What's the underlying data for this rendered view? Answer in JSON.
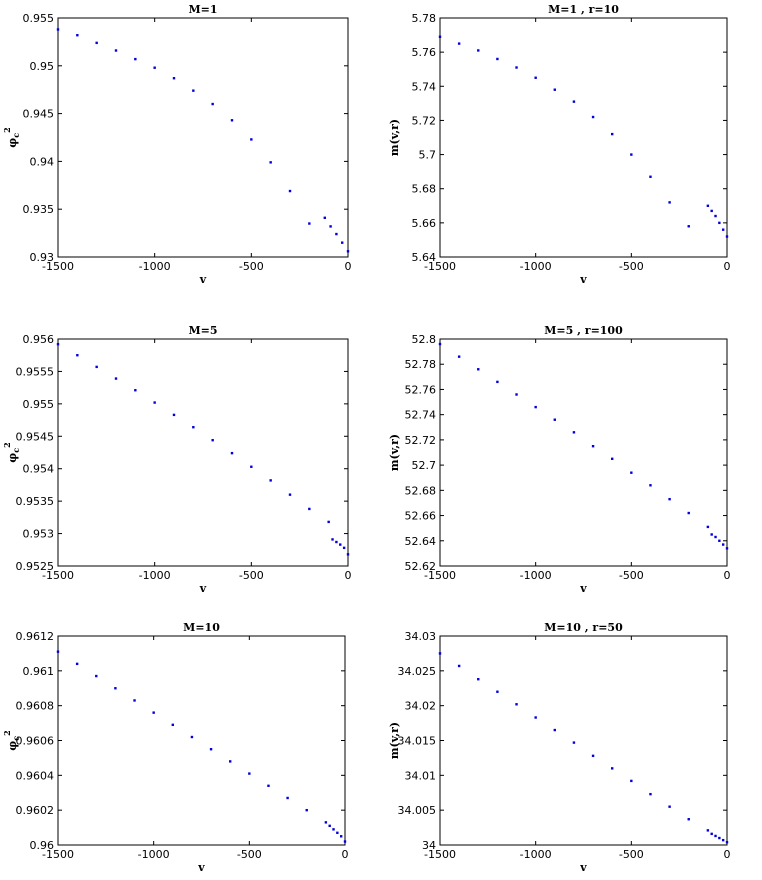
{
  "chart_data": [
    {
      "type": "scatter",
      "title": "M=1",
      "xlabel": "v",
      "ylabel": "φ_c^2",
      "xlim": [
        -1500,
        0
      ],
      "ylim": [
        0.93,
        0.955
      ],
      "xticks": [
        "-1500",
        "-1000",
        "-500",
        "0"
      ],
      "yticks": [
        "0.93",
        "0.935",
        "0.94",
        "0.945",
        "0.95",
        "0.955"
      ],
      "series": [
        {
          "x": [
            -1500,
            -1400,
            -1300,
            -1200,
            -1100,
            -1000,
            -900,
            -800,
            -700,
            -600,
            -500,
            -400,
            -300,
            -200,
            -120,
            -90,
            -60,
            -30,
            0
          ],
          "y": [
            0.9538,
            0.9532,
            0.9524,
            0.9516,
            0.9507,
            0.9498,
            0.9487,
            0.9474,
            0.946,
            0.9443,
            0.9423,
            0.9399,
            0.9369,
            0.9335,
            0.9341,
            0.9332,
            0.9324,
            0.9315,
            0.9306
          ]
        }
      ]
    },
    {
      "type": "scatter",
      "title": "M=1 , r=10",
      "xlabel": "v",
      "ylabel": "m(v,r)",
      "xlim": [
        -1500,
        0
      ],
      "ylim": [
        5.64,
        5.78
      ],
      "xticks": [
        "-1500",
        "-1000",
        "-500",
        "0"
      ],
      "yticks": [
        "5.64",
        "5.66",
        "5.68",
        "5.7",
        "5.72",
        "5.74",
        "5.76",
        "5.78"
      ],
      "series": [
        {
          "x": [
            -1500,
            -1400,
            -1300,
            -1200,
            -1100,
            -1000,
            -900,
            -800,
            -700,
            -600,
            -500,
            -400,
            -300,
            -200,
            -100,
            -80,
            -60,
            -40,
            -20,
            0
          ],
          "y": [
            5.769,
            5.765,
            5.761,
            5.756,
            5.751,
            5.745,
            5.738,
            5.731,
            5.722,
            5.712,
            5.7,
            5.687,
            5.672,
            5.658,
            5.67,
            5.667,
            5.664,
            5.66,
            5.656,
            5.652
          ]
        }
      ]
    },
    {
      "type": "scatter",
      "title": "M=5",
      "xlabel": "v",
      "ylabel": "φ_c^2",
      "xlim": [
        -1500,
        0
      ],
      "ylim": [
        0.9525,
        0.956
      ],
      "xticks": [
        "-1500",
        "-1000",
        "-500",
        "0"
      ],
      "yticks": [
        "0.9525",
        "0.953",
        "0.9535",
        "0.954",
        "0.9545",
        "0.955",
        "0.9555",
        "0.956"
      ],
      "series": [
        {
          "x": [
            -1500,
            -1400,
            -1300,
            -1200,
            -1100,
            -1000,
            -900,
            -800,
            -700,
            -600,
            -500,
            -400,
            -300,
            -200,
            -100,
            -80,
            -60,
            -40,
            -20,
            0
          ],
          "y": [
            0.95592,
            0.95575,
            0.95557,
            0.95539,
            0.95521,
            0.95502,
            0.95483,
            0.95464,
            0.95444,
            0.95424,
            0.95403,
            0.95382,
            0.9536,
            0.95338,
            0.95318,
            0.95291,
            0.95287,
            0.95283,
            0.95278,
            0.95268
          ]
        }
      ]
    },
    {
      "type": "scatter",
      "title": "M=5 , r=100",
      "xlabel": "v",
      "ylabel": "m(v,r)",
      "xlim": [
        -1500,
        0
      ],
      "ylim": [
        52.62,
        52.8
      ],
      "xticks": [
        "-1500",
        "-1000",
        "-500",
        "0"
      ],
      "yticks": [
        "52.62",
        "52.64",
        "52.66",
        "52.68",
        "52.7",
        "52.72",
        "52.74",
        "52.76",
        "52.78",
        "52.8"
      ],
      "series": [
        {
          "x": [
            -1500,
            -1400,
            -1300,
            -1200,
            -1100,
            -1000,
            -900,
            -800,
            -700,
            -600,
            -500,
            -400,
            -300,
            -200,
            -100,
            -80,
            -60,
            -40,
            -20,
            0
          ],
          "y": [
            52.796,
            52.786,
            52.776,
            52.766,
            52.756,
            52.746,
            52.736,
            52.726,
            52.715,
            52.705,
            52.694,
            52.684,
            52.673,
            52.662,
            52.651,
            52.645,
            52.643,
            52.64,
            52.637,
            52.634
          ]
        }
      ]
    },
    {
      "type": "scatter",
      "title": "M=10",
      "xlabel": "v",
      "ylabel": "φ_c^2",
      "xlim": [
        -1500,
        0
      ],
      "ylim": [
        0.96,
        0.9612
      ],
      "xticks": [
        "-1500",
        "-1000",
        "-500",
        "0"
      ],
      "yticks": [
        "0.96",
        "0.9602",
        "0.9604",
        "0.9606",
        "0.9608",
        "0.961",
        "0.9612"
      ],
      "series": [
        {
          "x": [
            -1500,
            -1400,
            -1300,
            -1200,
            -1100,
            -1000,
            -900,
            -800,
            -700,
            -600,
            -500,
            -400,
            -300,
            -200,
            -100,
            -80,
            -60,
            -40,
            -20,
            0
          ],
          "y": [
            0.96111,
            0.96104,
            0.96097,
            0.9609,
            0.96083,
            0.96076,
            0.96069,
            0.96062,
            0.96055,
            0.96048,
            0.96041,
            0.96034,
            0.96027,
            0.9602,
            0.96013,
            0.96011,
            0.96009,
            0.96007,
            0.96005,
            0.96002
          ]
        }
      ]
    },
    {
      "type": "scatter",
      "title": "M=10 , r=50",
      "xlabel": "v",
      "ylabel": "m(v,r)",
      "xlim": [
        -1500,
        0
      ],
      "ylim": [
        34,
        34.03
      ],
      "xticks": [
        "-1500",
        "-1000",
        "-500",
        "0"
      ],
      "yticks": [
        "34",
        "34.005",
        "34.01",
        "34.015",
        "34.02",
        "34.025",
        "34.03"
      ],
      "series": [
        {
          "x": [
            -1500,
            -1400,
            -1300,
            -1200,
            -1100,
            -1000,
            -900,
            -800,
            -700,
            -600,
            -500,
            -400,
            -300,
            -200,
            -100,
            -80,
            -60,
            -40,
            -20,
            0
          ],
          "y": [
            34.0275,
            34.0257,
            34.0238,
            34.022,
            34.0202,
            34.0183,
            34.0165,
            34.0147,
            34.0128,
            34.011,
            34.0092,
            34.0073,
            34.0055,
            34.0037,
            34.0021,
            34.0016,
            34.0013,
            34.001,
            34.0007,
            34.0004
          ]
        }
      ]
    }
  ]
}
